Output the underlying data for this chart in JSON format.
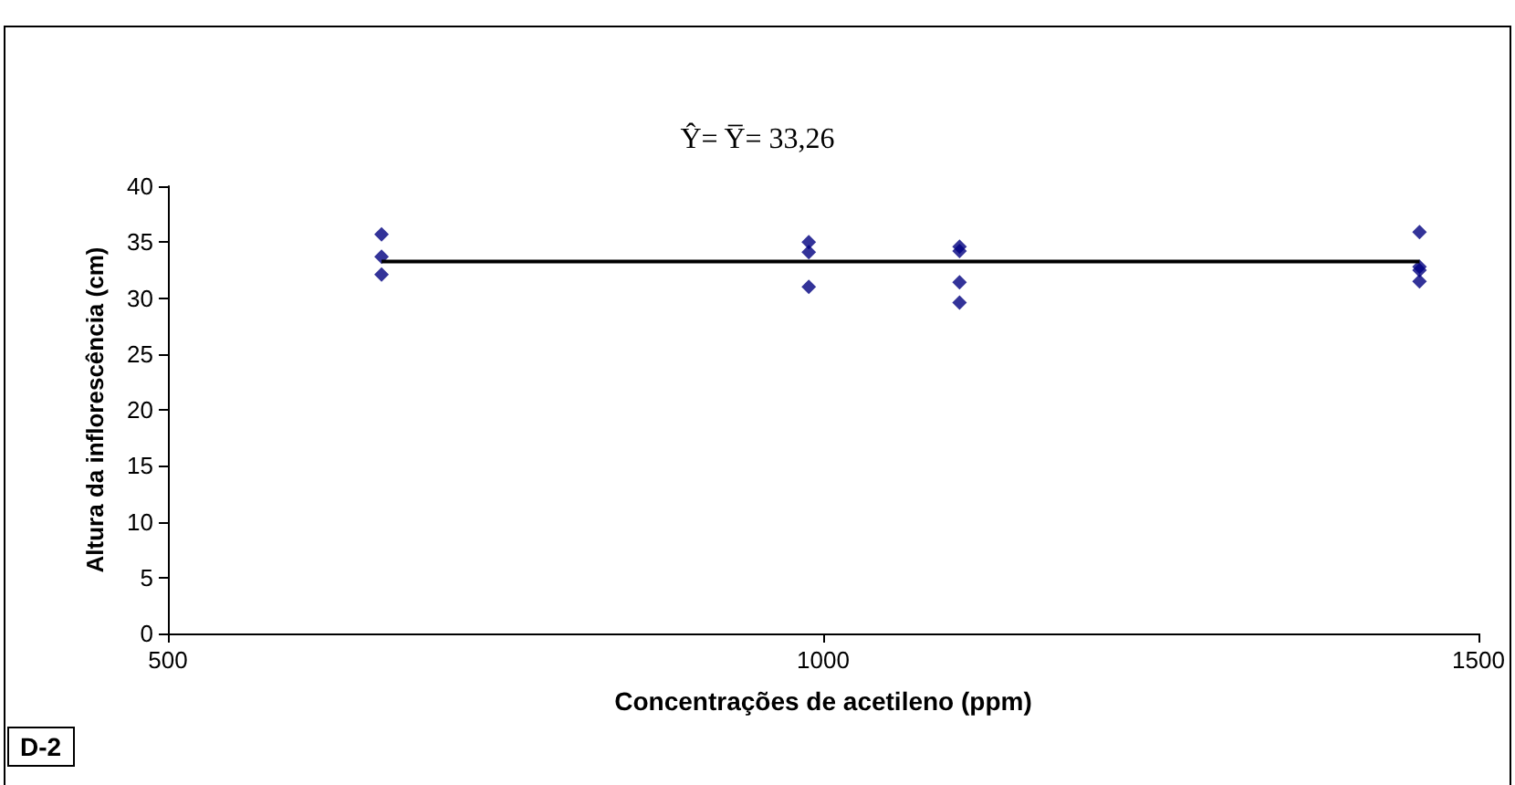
{
  "chart_data": {
    "type": "scatter",
    "xlabel": "Concentrações de acetileno (ppm)",
    "ylabel": "Altura da inflorescência (cm)",
    "annotations": [
      "Ŷ= Y̅= 33,26",
      "D-2"
    ],
    "series": [
      {
        "color": "#000080",
        "x": [
          663,
          663,
          663,
          989,
          989,
          989,
          1104,
          1104,
          1104,
          1104,
          1455,
          1455,
          1455,
          1455
        ],
        "values": [
          35.7,
          33.7,
          32.1,
          35.0,
          34.1,
          31.0,
          34.6,
          34.2,
          31.4,
          29.6,
          35.9,
          32.8,
          32.5,
          31.5
        ],
        "marker": "diamond"
      },
      {
        "type": "line",
        "color": "#000000",
        "x": [
          663,
          1455
        ],
        "values": [
          33.26,
          33.26
        ],
        "marker": "none"
      }
    ],
    "xlim": [
      500,
      1500
    ],
    "xticks": [
      500,
      1000,
      1500
    ],
    "ylim": [
      0,
      40
    ],
    "yticks": [
      0,
      5,
      10,
      15,
      20,
      25,
      30,
      35,
      40
    ],
    "grid": false
  }
}
